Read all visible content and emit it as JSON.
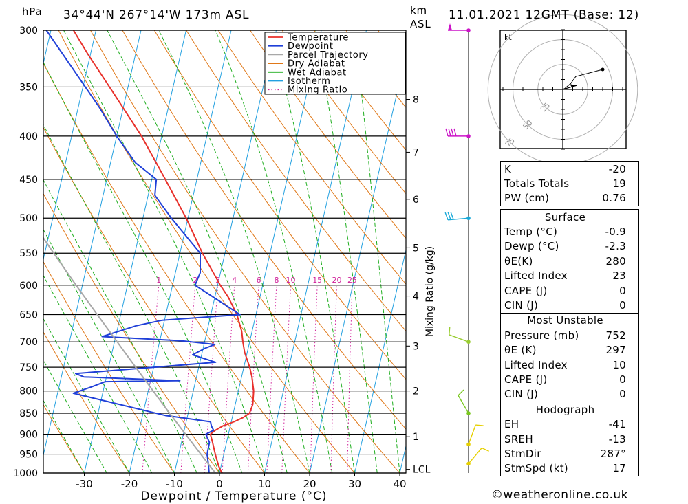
{
  "header": {
    "pressure_unit": "hPa",
    "location": "34°44'N 267°14'W 173m ASL",
    "height_unit": "km",
    "height_ref": "ASL",
    "datetime": "11.01.2021 12GMT (Base: 12)"
  },
  "chart_data": {
    "type": "line",
    "subtype": "skew-t log-p",
    "xlabel": "Dewpoint / Temperature (°C)",
    "ylabel": "hPa",
    "x_ticks": [
      -30,
      -20,
      -10,
      0,
      10,
      20,
      30,
      40
    ],
    "y_ticks": [
      300,
      350,
      400,
      450,
      500,
      550,
      600,
      650,
      700,
      750,
      800,
      850,
      900,
      950,
      1000
    ],
    "km_ticks": [
      {
        "label": "8",
        "p": 362
      },
      {
        "label": "7",
        "p": 418
      },
      {
        "label": "6",
        "p": 475
      },
      {
        "label": "5",
        "p": 542
      },
      {
        "label": "4",
        "p": 618
      },
      {
        "label": "3",
        "p": 708
      },
      {
        "label": "2",
        "p": 800
      },
      {
        "label": "1",
        "p": 906
      },
      {
        "label": "LCL",
        "p": 990
      }
    ],
    "mixing_ratio_label": "Mixing Ratio (g/kg)",
    "mixing_ratio_ticks": [
      "1",
      "2",
      "3",
      "4",
      "6",
      "8",
      "10",
      "15",
      "20",
      "25"
    ],
    "mixing_ratio_values": [
      1,
      2,
      3,
      4,
      6,
      8,
      10,
      15,
      20,
      25
    ],
    "legend": [
      "Temperature",
      "Dewpoint",
      "Parcel Trajectory",
      "Dry Adiabat",
      "Wet Adiabat",
      "Isotherm",
      "Mixing Ratio"
    ],
    "colors": {
      "temperature": "#e8302a",
      "dewpoint": "#1f3fd8",
      "parcel": "#a8a8a8",
      "dry_adiabat": "#e07818",
      "wet_adiabat": "#1fae1f",
      "isotherm": "#22a0e0",
      "mixing_ratio": "#d0209a"
    },
    "series": [
      {
        "name": "Temperature",
        "points": [
          [
            1000,
            0.5
          ],
          [
            980,
            -0.6
          ],
          [
            950,
            -1.9
          ],
          [
            920,
            -3.1
          ],
          [
            900,
            -4.0
          ],
          [
            890,
            -3.1
          ],
          [
            880,
            -1.7
          ],
          [
            870,
            0.6
          ],
          [
            860,
            2.4
          ],
          [
            850,
            3.6
          ],
          [
            830,
            3.9
          ],
          [
            800,
            3.4
          ],
          [
            770,
            2.3
          ],
          [
            750,
            1.3
          ],
          [
            720,
            -0.6
          ],
          [
            700,
            -1.5
          ],
          [
            680,
            -2.3
          ],
          [
            650,
            -4.2
          ],
          [
            620,
            -7.0
          ],
          [
            600,
            -9.4
          ],
          [
            550,
            -15.0
          ],
          [
            500,
            -20.4
          ],
          [
            450,
            -27.0
          ],
          [
            400,
            -34.5
          ],
          [
            350,
            -44.1
          ],
          [
            320,
            -50.6
          ],
          [
            300,
            -55.0
          ]
        ]
      },
      {
        "name": "Dewpoint",
        "points": [
          [
            1000,
            -2.3
          ],
          [
            980,
            -2.8
          ],
          [
            950,
            -3.7
          ],
          [
            920,
            -3.8
          ],
          [
            900,
            -5.0
          ],
          [
            890,
            -3.5
          ],
          [
            880,
            -4.2
          ],
          [
            870,
            -4.6
          ],
          [
            855,
            -15.0
          ],
          [
            805,
            -36.5
          ],
          [
            790,
            -32.5
          ],
          [
            780,
            -30.0
          ],
          [
            778,
            -13.5
          ],
          [
            770,
            -35.0
          ],
          [
            763,
            -37.0
          ],
          [
            740,
            -6.5
          ],
          [
            725,
            -12.0
          ],
          [
            712,
            -9.5
          ],
          [
            705,
            -7.6
          ],
          [
            698,
            -15.0
          ],
          [
            690,
            -33.0
          ],
          [
            670,
            -26.0
          ],
          [
            660,
            -20.5
          ],
          [
            650,
            -3.5
          ],
          [
            630,
            -8.0
          ],
          [
            600,
            -15.0
          ],
          [
            580,
            -14.5
          ],
          [
            550,
            -15.5
          ],
          [
            500,
            -23.7
          ],
          [
            470,
            -28.5
          ],
          [
            450,
            -29.0
          ],
          [
            430,
            -34.5
          ],
          [
            400,
            -40.0
          ],
          [
            370,
            -45.3
          ],
          [
            300,
            -61.0
          ]
        ]
      },
      {
        "name": "Parcel Trajectory",
        "points": [
          [
            1000,
            -0.9
          ],
          [
            950,
            -5.1
          ],
          [
            900,
            -9.5
          ],
          [
            850,
            -14.1
          ],
          [
            800,
            -18.9
          ],
          [
            750,
            -24.0
          ],
          [
            700,
            -29.4
          ],
          [
            650,
            -35.2
          ],
          [
            600,
            -41.4
          ],
          [
            550,
            -48.0
          ],
          [
            500,
            -55.1
          ],
          [
            450,
            -62.7
          ],
          [
            400,
            -71.0
          ],
          [
            350,
            -80.1
          ],
          [
            300,
            -90.4
          ]
        ]
      }
    ],
    "wind_barbs": [
      {
        "p": 300,
        "dir": 270,
        "speed": 50
      },
      {
        "p": 400,
        "dir": 270,
        "speed": 40
      },
      {
        "p": 500,
        "dir": 265,
        "speed": 30
      },
      {
        "p": 700,
        "dir": 290,
        "speed": 10
      },
      {
        "p": 850,
        "dir": 330,
        "speed": 10
      },
      {
        "p": 925,
        "dir": 20,
        "speed": 10
      },
      {
        "p": 975,
        "dir": 40,
        "speed": 10
      }
    ]
  },
  "hodograph": {
    "unit": "kt",
    "rings": [
      "25",
      "50",
      "75"
    ],
    "trace": [
      [
        0,
        0
      ],
      [
        2,
        1
      ],
      [
        8,
        6
      ],
      [
        13,
        13
      ],
      [
        40,
        20
      ]
    ],
    "storm_motion": [
      14,
      4
    ]
  },
  "indices": {
    "basic": [
      {
        "label": "K",
        "value": "-20"
      },
      {
        "label": "Totals Totals",
        "value": "19"
      },
      {
        "label": "PW (cm)",
        "value": "0.76"
      }
    ],
    "surface": {
      "title": "Surface",
      "rows": [
        {
          "label": "Temp (°C)",
          "value": "-0.9"
        },
        {
          "label": "Dewp (°C)",
          "value": "-2.3"
        },
        {
          "label": "θE(K)",
          "value": "280"
        },
        {
          "label": "Lifted Index",
          "value": "23"
        },
        {
          "label": "CAPE (J)",
          "value": "0"
        },
        {
          "label": "CIN (J)",
          "value": "0"
        }
      ]
    },
    "most_unstable": {
      "title": "Most Unstable",
      "rows": [
        {
          "label": "Pressure (mb)",
          "value": "752"
        },
        {
          "label": "θE (K)",
          "value": "297"
        },
        {
          "label": "Lifted Index",
          "value": "10"
        },
        {
          "label": "CAPE (J)",
          "value": "0"
        },
        {
          "label": "CIN (J)",
          "value": "0"
        }
      ]
    },
    "hodograph": {
      "title": "Hodograph",
      "rows": [
        {
          "label": "EH",
          "value": "-41"
        },
        {
          "label": "SREH",
          "value": "-13"
        },
        {
          "label": "StmDir",
          "value": "287°"
        },
        {
          "label": "StmSpd (kt)",
          "value": "17"
        }
      ]
    }
  },
  "credit": "©weatheronline.co.uk"
}
